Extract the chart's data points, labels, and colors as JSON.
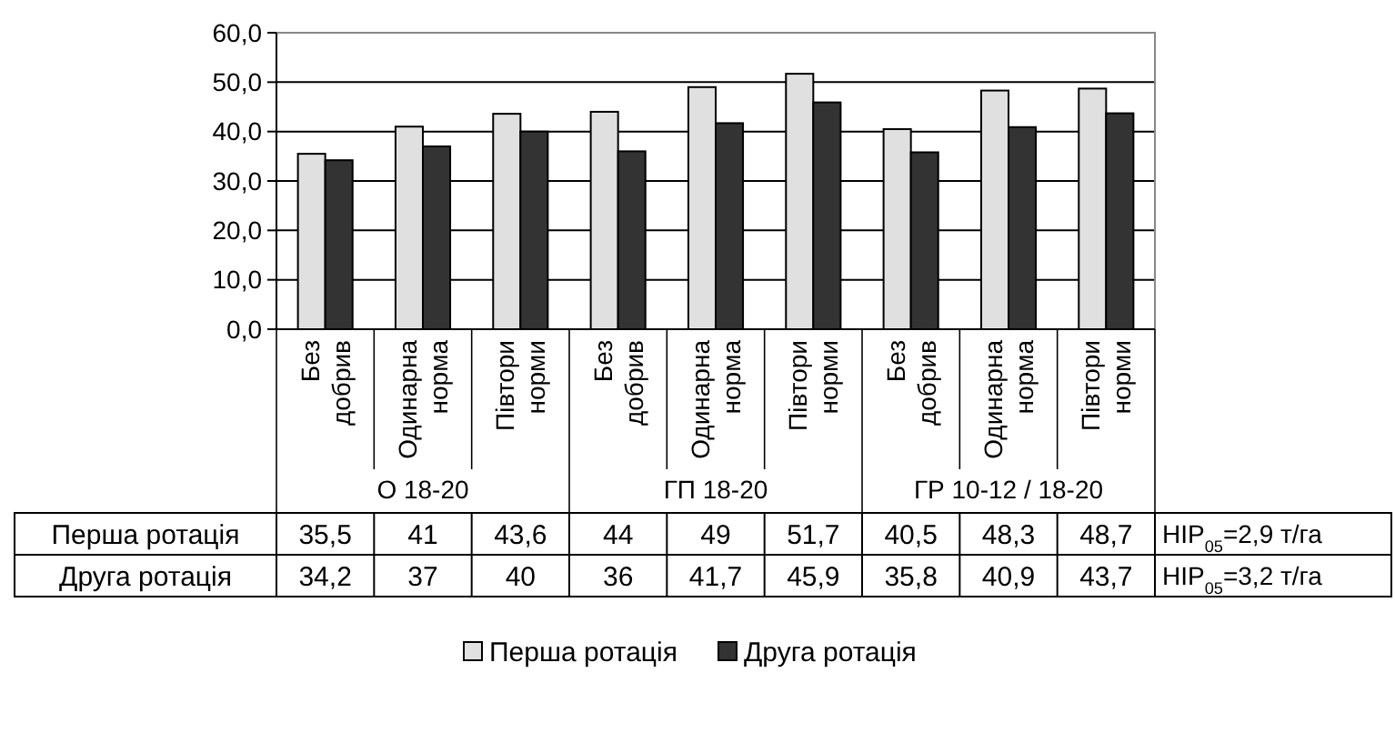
{
  "chart_data": {
    "type": "bar",
    "categories": [
      "Без добрив",
      "Одинарна норма",
      "Півтори норми",
      "Без добрив",
      "Одинарна норма",
      "Півтори норми",
      "Без добрив",
      "Одинарна норма",
      "Півтори норми"
    ],
    "series": [
      {
        "name": "Перша ротація",
        "color": "#e0e0e0",
        "values": [
          35.5,
          41,
          43.6,
          44,
          49,
          51.7,
          40.5,
          48.3,
          48.7
        ],
        "value_labels": [
          "35,5",
          "41",
          "43,6",
          "44",
          "49",
          "51,7",
          "40,5",
          "48,3",
          "48,7"
        ]
      },
      {
        "name": "Друга ротація",
        "color": "#333333",
        "values": [
          34.2,
          37,
          40,
          36,
          41.7,
          45.9,
          35.8,
          40.9,
          43.7
        ],
        "value_labels": [
          "34,2",
          "37",
          "40",
          "36",
          "41,7",
          "45,9",
          "35,8",
          "40,9",
          "43,7"
        ]
      }
    ],
    "ylim": [
      0,
      60
    ],
    "yticks": [
      {
        "value": 0,
        "label": "0,0"
      },
      {
        "value": 10,
        "label": "10,0"
      },
      {
        "value": 20,
        "label": "20,0"
      },
      {
        "value": 30,
        "label": "30,0"
      },
      {
        "value": 40,
        "label": "40,0"
      },
      {
        "value": 50,
        "label": "50,0"
      },
      {
        "value": 60,
        "label": "60,0"
      }
    ],
    "grid": "y",
    "legend": "bottom",
    "annotations": [
      "О 18-20",
      "ГП 18-20",
      "ГР 10-12 / 18-20",
      "НІР$_{05}$=2,9 т/га",
      "НІР$_{05}$=3,2 т/га"
    ]
  }
}
